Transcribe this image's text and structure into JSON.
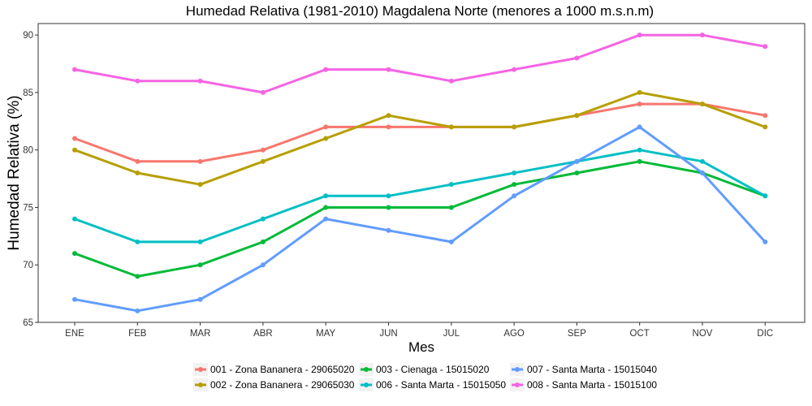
{
  "chart_data": {
    "type": "line",
    "title": "Humedad Relativa (1981-2010) Magdalena Norte (menores a 1000 m.s.n.m)",
    "xlabel": "Mes",
    "ylabel": "Humedad Relativa (%)",
    "categories": [
      "ENE",
      "FEB",
      "MAR",
      "ABR",
      "MAY",
      "JUN",
      "JUL",
      "AGO",
      "SEP",
      "OCT",
      "NOV",
      "DIC"
    ],
    "ylim": [
      65,
      91
    ],
    "yticks": [
      65,
      70,
      75,
      80,
      85,
      90
    ],
    "grid": false,
    "legend_position": "bottom",
    "series": [
      {
        "name": "001 - Zona Bananera - 29065020",
        "color": "#F8766D",
        "values": [
          81,
          79,
          79,
          80,
          82,
          82,
          82,
          82,
          83,
          84,
          84,
          83
        ]
      },
      {
        "name": "002 - Zona Bananera - 29065030",
        "color": "#B79F00",
        "values": [
          80,
          78,
          77,
          79,
          81,
          83,
          82,
          82,
          83,
          85,
          84,
          82
        ]
      },
      {
        "name": "003 - Cienaga - 15015020",
        "color": "#00BA38",
        "values": [
          71,
          69,
          70,
          72,
          75,
          75,
          75,
          77,
          78,
          79,
          78,
          76
        ]
      },
      {
        "name": "006 - Santa Marta - 15015050",
        "color": "#00BFC4",
        "values": [
          74,
          72,
          72,
          74,
          76,
          76,
          77,
          78,
          79,
          80,
          79,
          76
        ]
      },
      {
        "name": "007 - Santa Marta - 15015040",
        "color": "#619CFF",
        "values": [
          67,
          66,
          67,
          70,
          74,
          73,
          72,
          76,
          79,
          82,
          78,
          72
        ]
      },
      {
        "name": "008 - Santa Marta - 15015100",
        "color": "#F564E3",
        "values": [
          87,
          86,
          86,
          85,
          87,
          87,
          86,
          87,
          88,
          90,
          90,
          89
        ]
      }
    ]
  }
}
